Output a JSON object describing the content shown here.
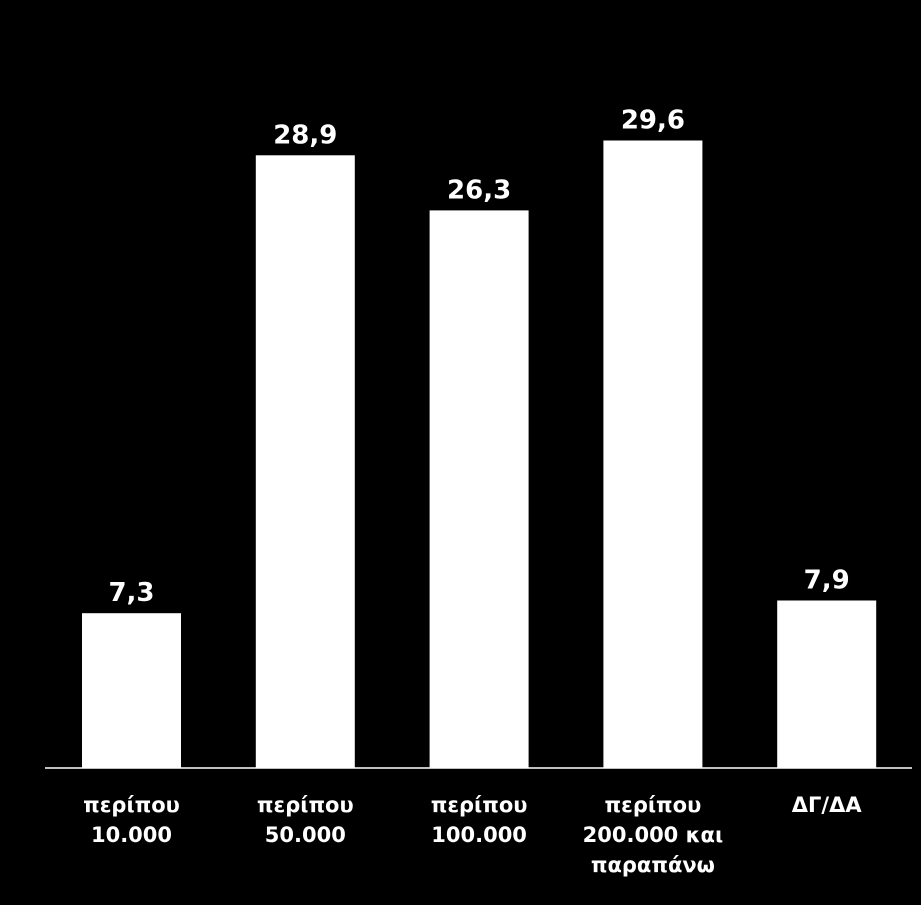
{
  "chart_data": {
    "type": "bar",
    "categories": [
      [
        "περίπου",
        "10.000"
      ],
      [
        "περίπου",
        "50.000"
      ],
      [
        "περίπου",
        "100.000"
      ],
      [
        "περίπου",
        "200.000 και",
        "παραπάνω"
      ],
      [
        "ΔΓ/ΔΑ"
      ]
    ],
    "values": [
      7.3,
      28.9,
      26.3,
      29.6,
      7.9
    ],
    "value_labels": [
      "7,3",
      "28,9",
      "26,3",
      "29,6",
      "7,9"
    ],
    "title": "",
    "xlabel": "",
    "ylabel": "",
    "ylim": [
      0,
      30
    ],
    "grid": false,
    "legend": "none",
    "colors": {
      "background": "#000000",
      "bar": "#ffffff",
      "text": "#ffffff",
      "axis": "#ffffff"
    }
  }
}
